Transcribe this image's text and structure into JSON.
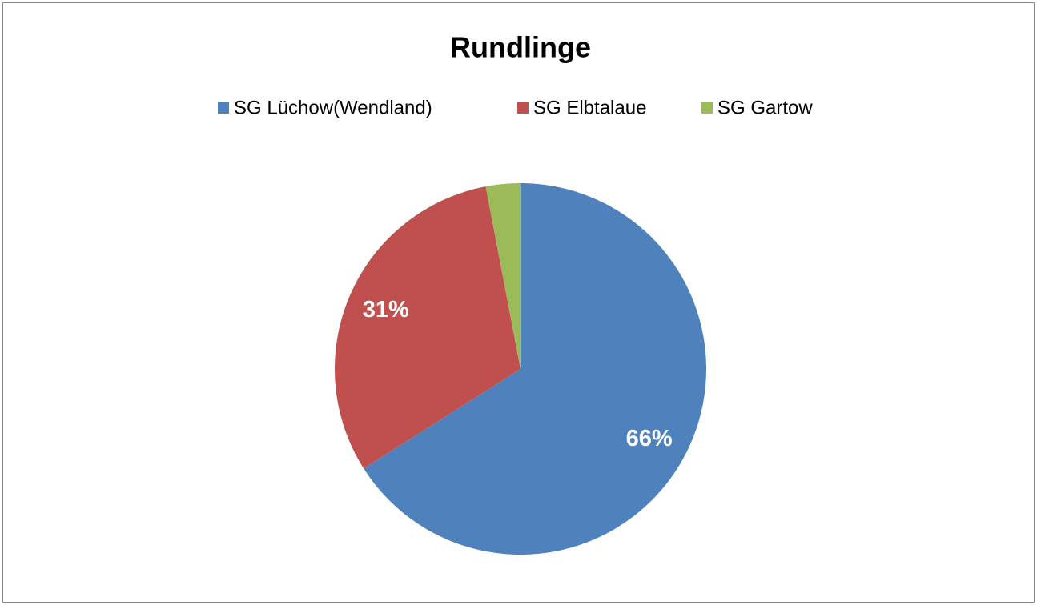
{
  "chart_data": {
    "type": "pie",
    "title": "Rundlinge",
    "categories": [
      "SG Lüchow(Wendland)",
      "SG Elbtalaue",
      "SG Gartow"
    ],
    "values": [
      66,
      31,
      3
    ],
    "value_labels": [
      "66%",
      "31%",
      null
    ],
    "colors": [
      "#4f81bd",
      "#c0504d",
      "#9bbb59"
    ],
    "legend": "top"
  }
}
